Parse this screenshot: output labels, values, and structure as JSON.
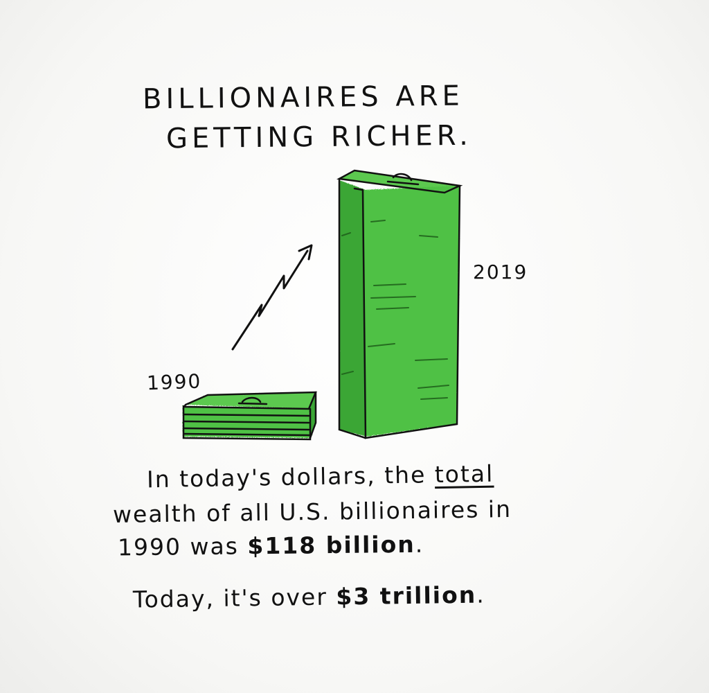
{
  "title": {
    "line1": "BILLIONAIRES ARE",
    "line2": "GETTING RICHER."
  },
  "labels": {
    "year_start": "1990",
    "year_end": "2019"
  },
  "caption": {
    "line1_a": "In today's dollars, the ",
    "line1_b": "total",
    "line2": "wealth of all U.S. billionaires in",
    "line3_a": "1990 was ",
    "line3_b": "$118 billion",
    "line3_c": ".",
    "line4_a": "Today, it's over ",
    "line4_b": "$3 trillion",
    "line4_c": "."
  },
  "colors": {
    "money_green": "#4fc145",
    "money_dark": "#2e8f2a",
    "ink": "#111111"
  }
}
